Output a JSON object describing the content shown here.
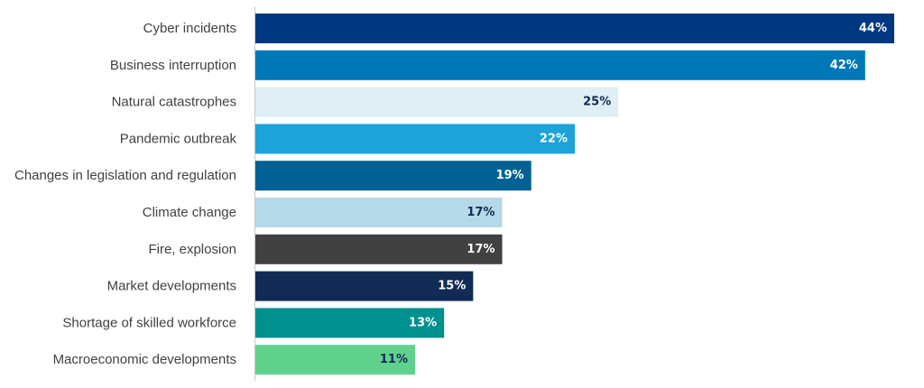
{
  "chart_data": {
    "type": "bar",
    "orientation": "horizontal",
    "categories": [
      "Cyber incidents",
      "Business interruption",
      "Natural catastrophes",
      "Pandemic outbreak",
      "Changes in legislation and regulation",
      "Climate change",
      "Fire, explosion",
      "Market developments",
      "Shortage of skilled workforce",
      "Macroeconomic developments"
    ],
    "values": [
      44,
      42,
      25,
      22,
      19,
      17,
      17,
      15,
      13,
      11
    ],
    "value_labels": [
      "44%",
      "42%",
      "25%",
      "22%",
      "19%",
      "17%",
      "17%",
      "15%",
      "13%",
      "11%"
    ],
    "colors": [
      "#003781",
      "#0077b7",
      "#dfeff4",
      "#1ca3d9",
      "#006192",
      "#b5d9e8",
      "#414141",
      "#122b54",
      "#00908d",
      "#5fd18c"
    ],
    "label_colors": [
      "#ffffff",
      "#ffffff",
      "#122b54",
      "#ffffff",
      "#ffffff",
      "#122b54",
      "#ffffff",
      "#ffffff",
      "#ffffff",
      "#122b54"
    ],
    "title": "",
    "xlabel": "",
    "ylabel": "",
    "xlim": [
      0,
      44
    ],
    "grid": false,
    "legend": "none"
  }
}
